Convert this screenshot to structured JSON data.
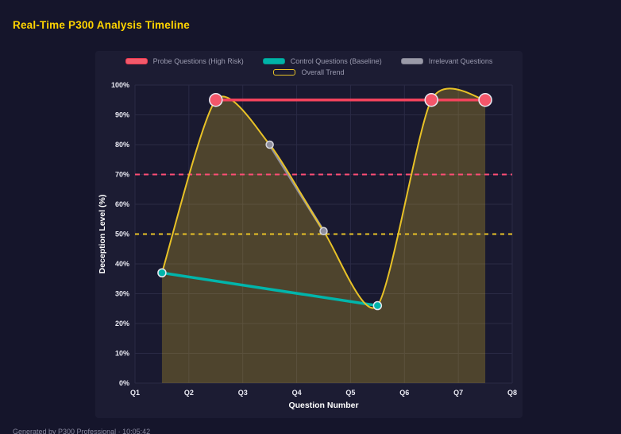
{
  "page": {
    "title": "Real-Time P300 Analysis Timeline",
    "footer": "Generated by P300 Professional · 10:05:42"
  },
  "colors": {
    "page_bg": "#15152b",
    "panel_bg": "#1c1c33",
    "plot_bg": "#191930",
    "grid": "#2a2a45",
    "tick_text": "#e9e9f2",
    "axis_title": "#ffffff",
    "title": "#ffd400",
    "legend_text": "#9b9bb0",
    "footer_text": "#8a8aa0",
    "trend_fill": "rgba(232,194,39,0.26)"
  },
  "chart_data": {
    "type": "line",
    "title": "Real-Time P300 Analysis Timeline",
    "xlabel": "Question Number",
    "ylabel": "Deception Level (%)",
    "xlim": [
      1,
      8
    ],
    "ylim": [
      0,
      100
    ],
    "x_ticks": [
      "Q1",
      "Q2",
      "Q3",
      "Q4",
      "Q5",
      "Q6",
      "Q7",
      "Q8"
    ],
    "y_ticks": [
      "0%",
      "10%",
      "20%",
      "30%",
      "40%",
      "50%",
      "60%",
      "70%",
      "80%",
      "90%",
      "100%"
    ],
    "grid": true,
    "legend_position": "top",
    "series": [
      {
        "name": "Probe Questions (High Risk)",
        "color": "#e8384f",
        "line_color": "#f4435c",
        "swatch_fill": "#f25a6b",
        "x": [
          2.5,
          6.5,
          7.5
        ],
        "y": [
          95,
          95,
          95
        ],
        "point_radius": 8,
        "point_fill": "#f4566a",
        "point_stroke": "#e9e9f2",
        "line_width": 3.5,
        "z": 4,
        "smooth": false,
        "fill": false
      },
      {
        "name": "Control Questions (Baseline)",
        "color": "#00968d",
        "line_color": "#00b5ab",
        "swatch_fill": "#00b3a8",
        "x": [
          1.5,
          5.5
        ],
        "y": [
          37,
          26
        ],
        "point_radius": 5,
        "point_fill": "#00b5ab",
        "point_stroke": "#e9e9f2",
        "line_width": 3.5,
        "z": 2,
        "smooth": false,
        "fill": false
      },
      {
        "name": "Irrelevant Questions",
        "color": "#7e7e8e",
        "line_color": "#8e8e9c",
        "swatch_fill": "#9a9aa8",
        "x": [
          3.5,
          4.5
        ],
        "y": [
          80,
          51
        ],
        "point_radius": 4.5,
        "point_fill": "#8e8e9c",
        "point_stroke": "#d6d6de",
        "line_width": 3.5,
        "z": 1,
        "smooth": false,
        "fill": false
      },
      {
        "name": "Overall Trend",
        "color": "#e8c227",
        "line_color": "#e8c227",
        "swatch_fill": "transparent",
        "x": [
          1.5,
          2.5,
          3.5,
          4.5,
          5.5,
          6.5,
          7.5
        ],
        "y": [
          37,
          95,
          80,
          51,
          26,
          95,
          95
        ],
        "point_radius": 0,
        "line_width": 2,
        "z": 3,
        "smooth": true,
        "fill": true
      }
    ],
    "thresholds": [
      {
        "label": "high-risk-threshold",
        "value": 70,
        "color": "#ff4d75",
        "dash": "6 5"
      },
      {
        "label": "baseline-threshold",
        "value": 50,
        "color": "#e8c227",
        "dash": "5 5"
      }
    ]
  }
}
